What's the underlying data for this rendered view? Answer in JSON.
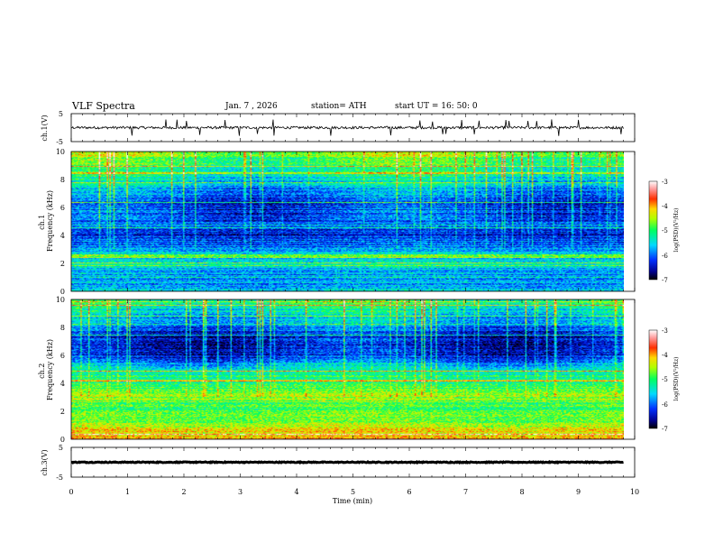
{
  "header": {
    "title": "VLF Spectra",
    "date": "Jan. 7 , 2026",
    "station": "station= ATH",
    "start": "start UT = 16: 50: 0"
  },
  "chart_data": [
    {
      "type": "line",
      "name": "ch1-waveform",
      "ylabel": "ch.1(V)",
      "ylim": [
        -5,
        5
      ],
      "yticks": [
        "5",
        "-5"
      ],
      "xlim": [
        0,
        10
      ],
      "x_extent_min": 9.8,
      "baseline": 0,
      "noise_amplitude": 0.45,
      "spike_count": 28
    },
    {
      "type": "heatmap",
      "name": "ch1-spectrogram",
      "ylabel": "ch.1\nFrequency (kHz)",
      "ylim": [
        0,
        10
      ],
      "yticks": [
        "0",
        "2",
        "4",
        "6",
        "8",
        "10"
      ],
      "xlim": [
        0,
        10
      ],
      "x_extent_min": 9.8,
      "color_range": [
        -7,
        -3
      ],
      "colorbar_label": "log(PSD)(V²/Hz)",
      "colorbar_ticks": [
        "-3",
        "-4",
        "-5",
        "-6",
        "-7"
      ],
      "profile_khz": [
        0,
        1,
        2,
        3,
        4,
        5,
        6,
        7,
        8,
        9,
        10
      ],
      "profile_log_psd": [
        -5.6,
        -5.9,
        -5.4,
        -5.8,
        -6.3,
        -6.1,
        -6.2,
        -5.9,
        -5.4,
        -5.0,
        -4.6
      ]
    },
    {
      "type": "heatmap",
      "name": "ch2-spectrogram",
      "ylabel": "ch.2\nFrequency (kHz)",
      "ylim": [
        0,
        10
      ],
      "yticks": [
        "0",
        "2",
        "4",
        "6",
        "8",
        "10"
      ],
      "xlim": [
        0,
        10
      ],
      "x_extent_min": 9.8,
      "color_range": [
        -7,
        -3
      ],
      "colorbar_label": "log(PSD)(V²/Hz)",
      "colorbar_ticks": [
        "-3",
        "-4",
        "-5",
        "-6",
        "-7"
      ],
      "profile_khz": [
        0,
        1,
        2,
        3,
        4,
        5,
        6,
        7,
        8,
        9,
        10
      ],
      "profile_log_psd": [
        -4.0,
        -4.5,
        -4.9,
        -4.6,
        -5.0,
        -5.3,
        -6.3,
        -6.5,
        -6.0,
        -5.5,
        -5.0
      ]
    },
    {
      "type": "line",
      "name": "ch3-waveform",
      "ylabel": "ch.3(V)",
      "ylim": [
        -5,
        5
      ],
      "yticks": [
        "5",
        "-5"
      ],
      "xlim": [
        0,
        10
      ],
      "x_extent_min": 9.8,
      "baseline": 0,
      "noise_amplitude": 0.15
    }
  ],
  "xaxis": {
    "label": "Time (min)",
    "ticks": [
      "0",
      "1",
      "2",
      "3",
      "4",
      "5",
      "6",
      "7",
      "8",
      "9",
      "10"
    ]
  }
}
